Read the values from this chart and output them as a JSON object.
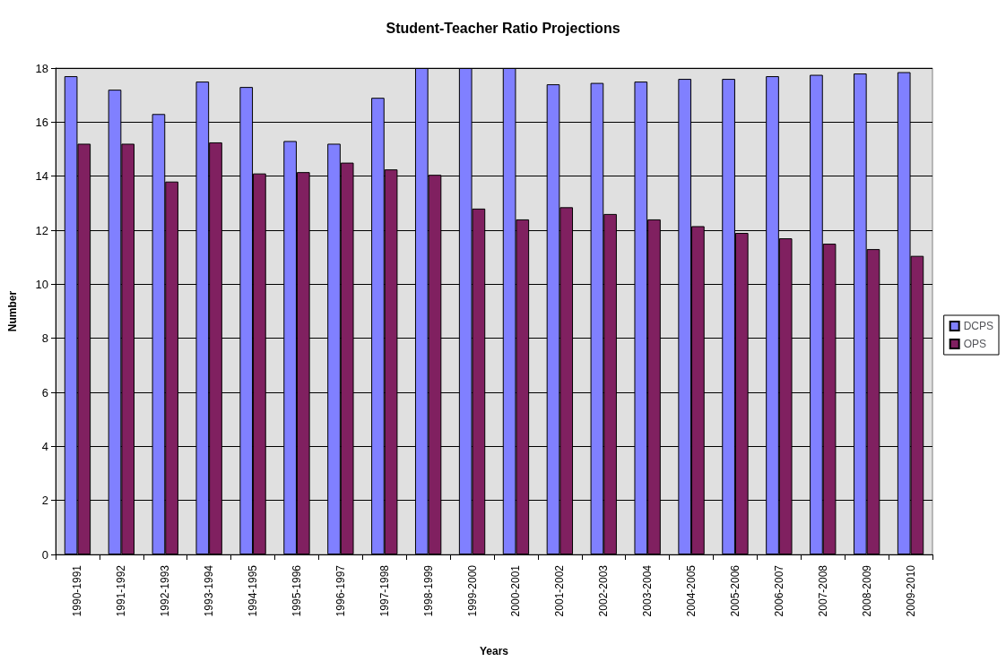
{
  "chart_data": {
    "type": "bar",
    "title": "Student-Teacher Ratio Projections",
    "xlabel": "Years",
    "ylabel": "Number",
    "categories": [
      "1990-1991",
      "1991-1992",
      "1992-1993",
      "1993-1994",
      "1994-1995",
      "1995-1996",
      "1996-1997",
      "1997-1998",
      "1998-1999",
      "1999-2000",
      "2000-2001",
      "2001-2002",
      "2002-2003",
      "2003-2004",
      "2004-2005",
      "2005-2006",
      "2006-2007",
      "2007-2008",
      "2008-2009",
      "2009-2010"
    ],
    "series": [
      {
        "name": "DCPS",
        "color": "#8080ff",
        "values": [
          17.7,
          17.2,
          16.3,
          17.5,
          17.3,
          15.3,
          15.2,
          16.9,
          18,
          18,
          18,
          17.4,
          17.45,
          17.5,
          17.6,
          17.6,
          17.7,
          17.75,
          17.8,
          17.85
        ]
      },
      {
        "name": "OPS",
        "color": "#802060",
        "values": [
          15.2,
          15.2,
          13.8,
          15.25,
          14.1,
          14.15,
          14.5,
          14.25,
          14.05,
          12.8,
          12.4,
          12.85,
          12.6,
          12.4,
          12.15,
          11.9,
          11.7,
          11.5,
          11.3,
          11.05
        ]
      }
    ],
    "ylim": [
      0,
      18
    ],
    "yticks": [
      0,
      2,
      4,
      6,
      8,
      10,
      12,
      14,
      16,
      18
    ],
    "grid": "y",
    "legend": "right"
  }
}
